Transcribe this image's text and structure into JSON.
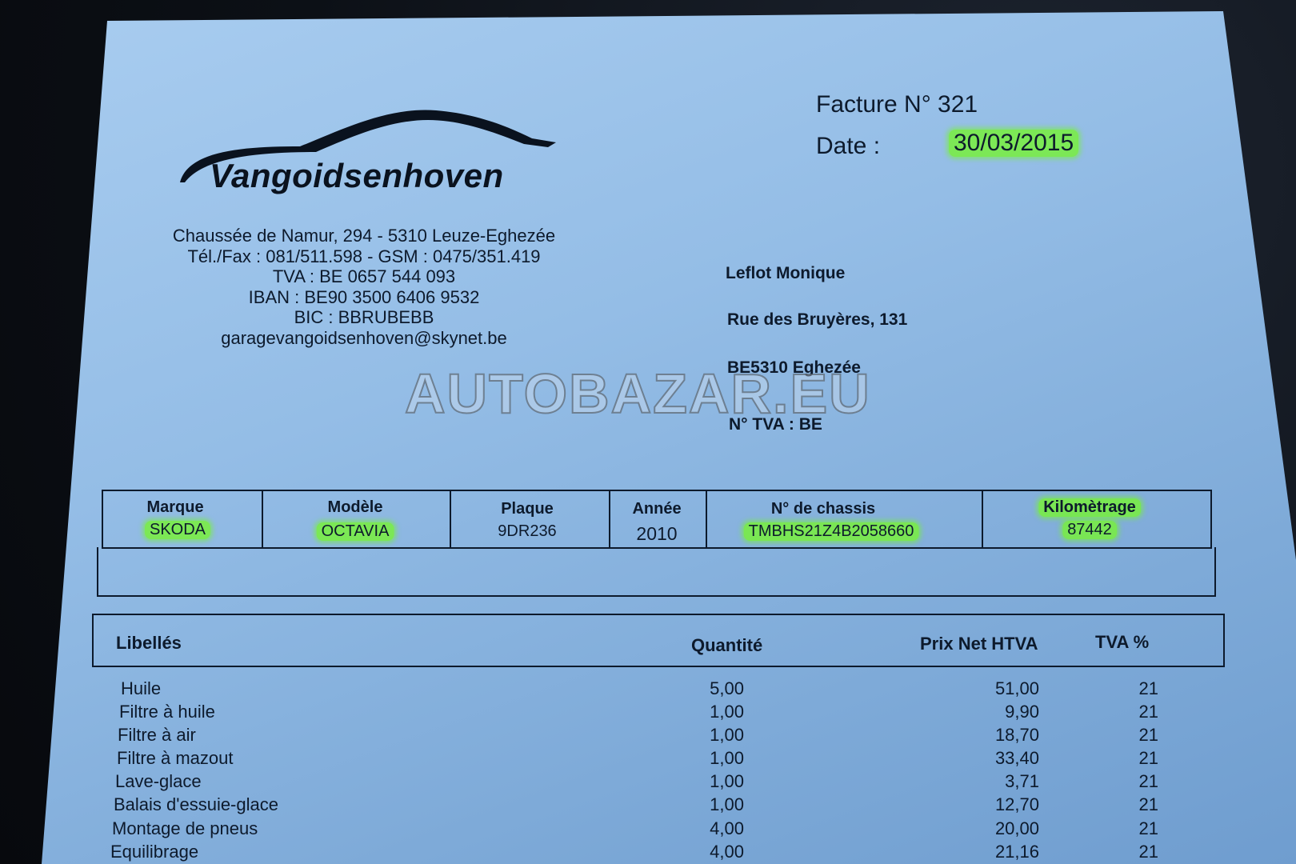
{
  "company": {
    "name": "Vangoidsenhoven",
    "address_lines": [
      "Chaussée de Namur, 294 - 5310 Leuze-Eghezée",
      "Tél./Fax : 081/511.598 - GSM : 0475/351.419",
      "TVA : BE 0657 544 093",
      "IBAN : BE90 3500 6406 9532",
      "BIC : BBRUBEBB",
      "garagevangoidsenhoven@skynet.be"
    ]
  },
  "invoice": {
    "number_label": "Facture N°",
    "number": "321",
    "date_label": "Date :",
    "date": "30/03/2015"
  },
  "client": {
    "name": "Leflot Monique",
    "street": "Rue des Bruyères, 131",
    "city": "BE5310 Eghezée",
    "vat_label": "N° TVA : BE"
  },
  "watermark": "AUTOBAZAR.EU",
  "vehicle": {
    "headers": [
      "Marque",
      "Modèle",
      "Plaque",
      "Année",
      "N° de chassis",
      "Kilomètrage"
    ],
    "values": [
      "SKODA",
      "OCTAVIA",
      "9DR236",
      "2010",
      "TMBHS21Z4B2058660",
      "87442"
    ]
  },
  "items_table": {
    "headers": {
      "label": "Libellés",
      "qty": "Quantité",
      "price": "Prix Net HTVA",
      "vat": "TVA %"
    },
    "rows": [
      {
        "label": "Huile",
        "qty": "5,00",
        "price": "51,00",
        "vat": "21"
      },
      {
        "label": "Filtre à huile",
        "qty": "1,00",
        "price": "9,90",
        "vat": "21"
      },
      {
        "label": "Filtre à air",
        "qty": "1,00",
        "price": "18,70",
        "vat": "21"
      },
      {
        "label": "Filtre à mazout",
        "qty": "1,00",
        "price": "33,40",
        "vat": "21"
      },
      {
        "label": "Lave-glace",
        "qty": "1,00",
        "price": "3,71",
        "vat": "21"
      },
      {
        "label": "Balais d'essuie-glace",
        "qty": "1,00",
        "price": "12,70",
        "vat": "21"
      },
      {
        "label": "Montage de pneus",
        "qty": "4,00",
        "price": "20,00",
        "vat": "21"
      },
      {
        "label": "Equilibrage",
        "qty": "4,00",
        "price": "21,16",
        "vat": "21"
      }
    ]
  },
  "colors": {
    "paper": "#94bde6",
    "highlight": "#78f03c",
    "ink": "#0d1a2c"
  }
}
